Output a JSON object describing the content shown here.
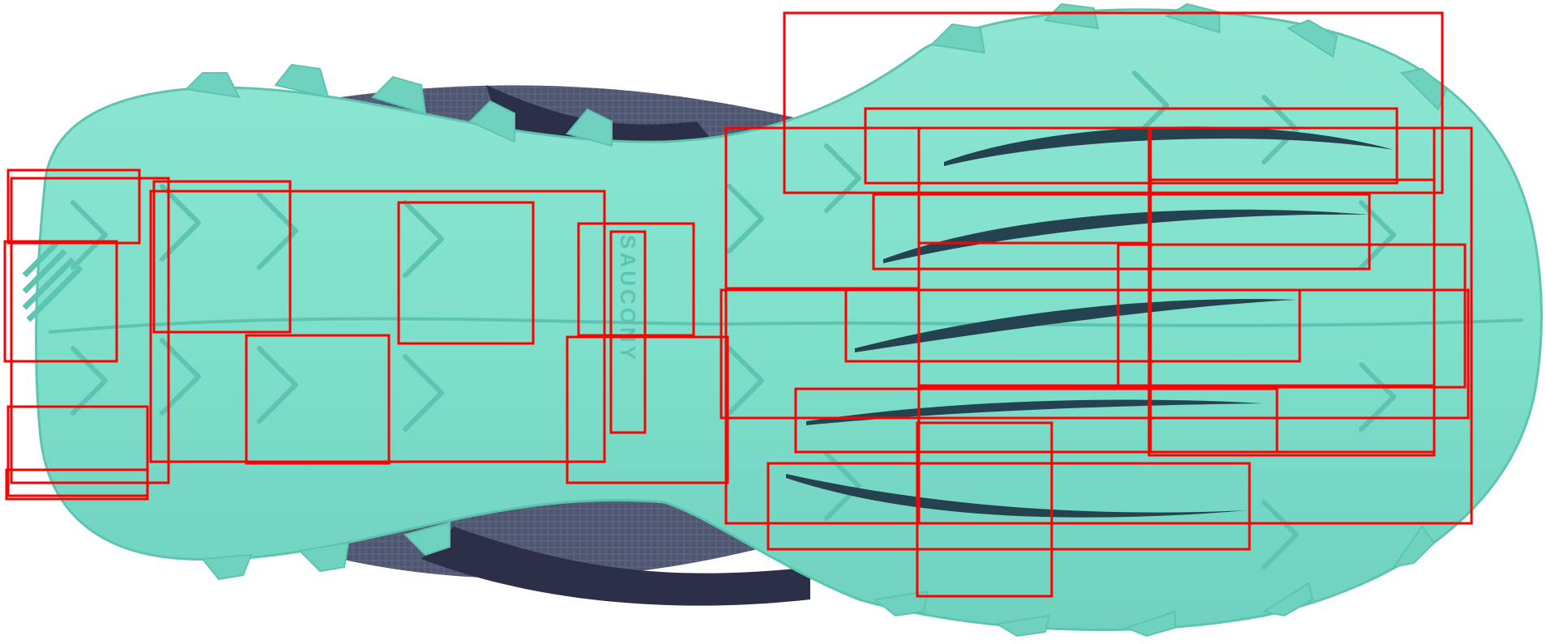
{
  "image": {
    "subject": "shoe-outsole",
    "colors": {
      "outsole": "#7fe0cc",
      "outsole_shadow": "#5cc4b0",
      "outsole_highlight": "#a6eddc",
      "upper": "#4f5670",
      "upper_dark": "#2b3048",
      "grooves": "#24424f",
      "box_stroke": "#ff0000",
      "background": "#ffffff"
    }
  },
  "logo": {
    "brand_text": "SAUCONY"
  },
  "annotations": {
    "count": 28
  }
}
